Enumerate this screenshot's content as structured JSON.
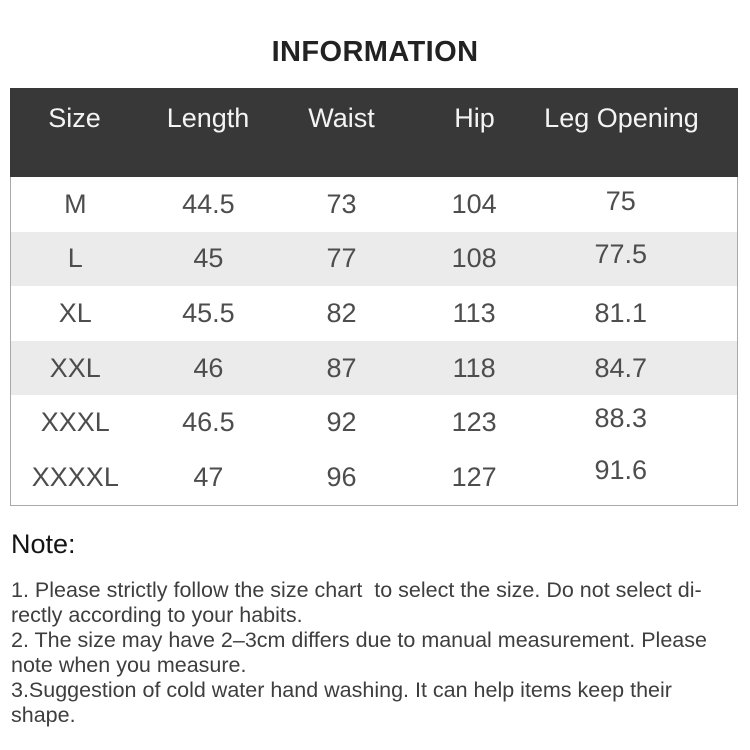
{
  "title": "INFORMATION",
  "table": {
    "columns": [
      "Size",
      "Length",
      "Waist",
      "Hip",
      "Leg Opening"
    ],
    "rows": [
      [
        "M",
        "44.5",
        "73",
        "104",
        "75"
      ],
      [
        "L",
        "45",
        "77",
        "108",
        "77.5"
      ],
      [
        "XL",
        "45.5",
        "82",
        "113",
        "81.1"
      ],
      [
        "XXL",
        "46",
        "87",
        "118",
        "84.7"
      ],
      [
        "XXXL",
        "46.5",
        "92",
        "123",
        "88.3"
      ],
      [
        "XXXXL",
        "47",
        "96",
        "127",
        "91.6"
      ]
    ]
  },
  "note": {
    "heading": "Note:",
    "lines": [
      "1. Please strictly follow the size chart  to select the size. Do not select di-",
      "rectly according to your habits.",
      "2. The size may have 2–3cm differs due to manual measurement. Please",
      "note when you measure.",
      "3.Suggestion of cold water hand washing. It can help items keep their",
      "shape."
    ]
  },
  "colors": {
    "header_bg": "#383838",
    "header_text": "#f4f4f4",
    "row_alt_bg": "#ebebeb",
    "cell_text": "#4d4d4d",
    "title_text": "#222222"
  }
}
